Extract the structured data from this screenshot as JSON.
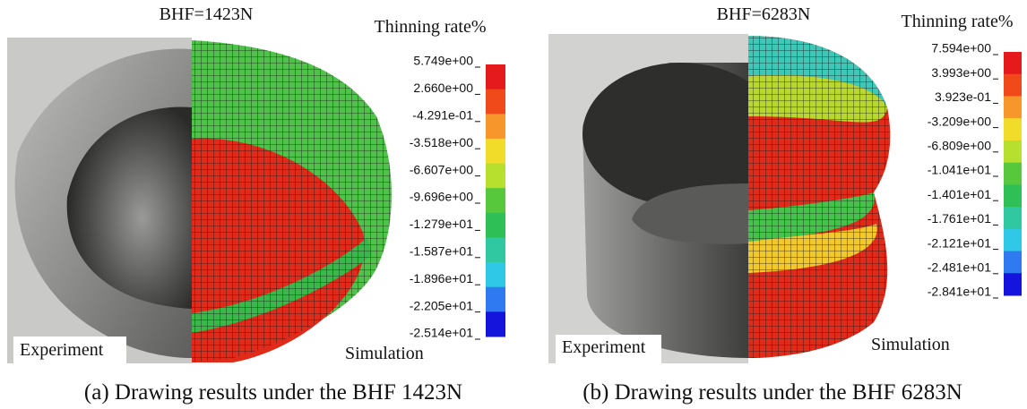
{
  "panels": [
    {
      "load": "BHF=1423N",
      "legend_title": "Thinning rate%",
      "scale": [
        "5.749e+00",
        "2.660e+00",
        "-4.291e-01",
        "-3.518e+00",
        "-6.607e+00",
        "-9.696e+00",
        "-1.279e+01",
        "-1.587e+01",
        "-1.896e+01",
        "-2.205e+01",
        "-2.514e+01"
      ],
      "experiment_label": "Experiment",
      "simulation_label": "Simulation",
      "caption": "(a) Drawing results under the BHF 1423N"
    },
    {
      "load": "BHF=6283N",
      "legend_title": "Thinning rate%",
      "scale": [
        "7.594e+00",
        "3.993e+00",
        "3.923e-01",
        "-3.209e+00",
        "-6.809e+00",
        "-1.041e+01",
        "-1.401e+01",
        "-1.761e+01",
        "-2.121e+01",
        "-2.481e+01",
        "-2.841e+01"
      ],
      "experiment_label": "Experiment",
      "simulation_label": "Simulation",
      "caption": "(b) Drawing results under the BHF 6283N"
    }
  ]
}
